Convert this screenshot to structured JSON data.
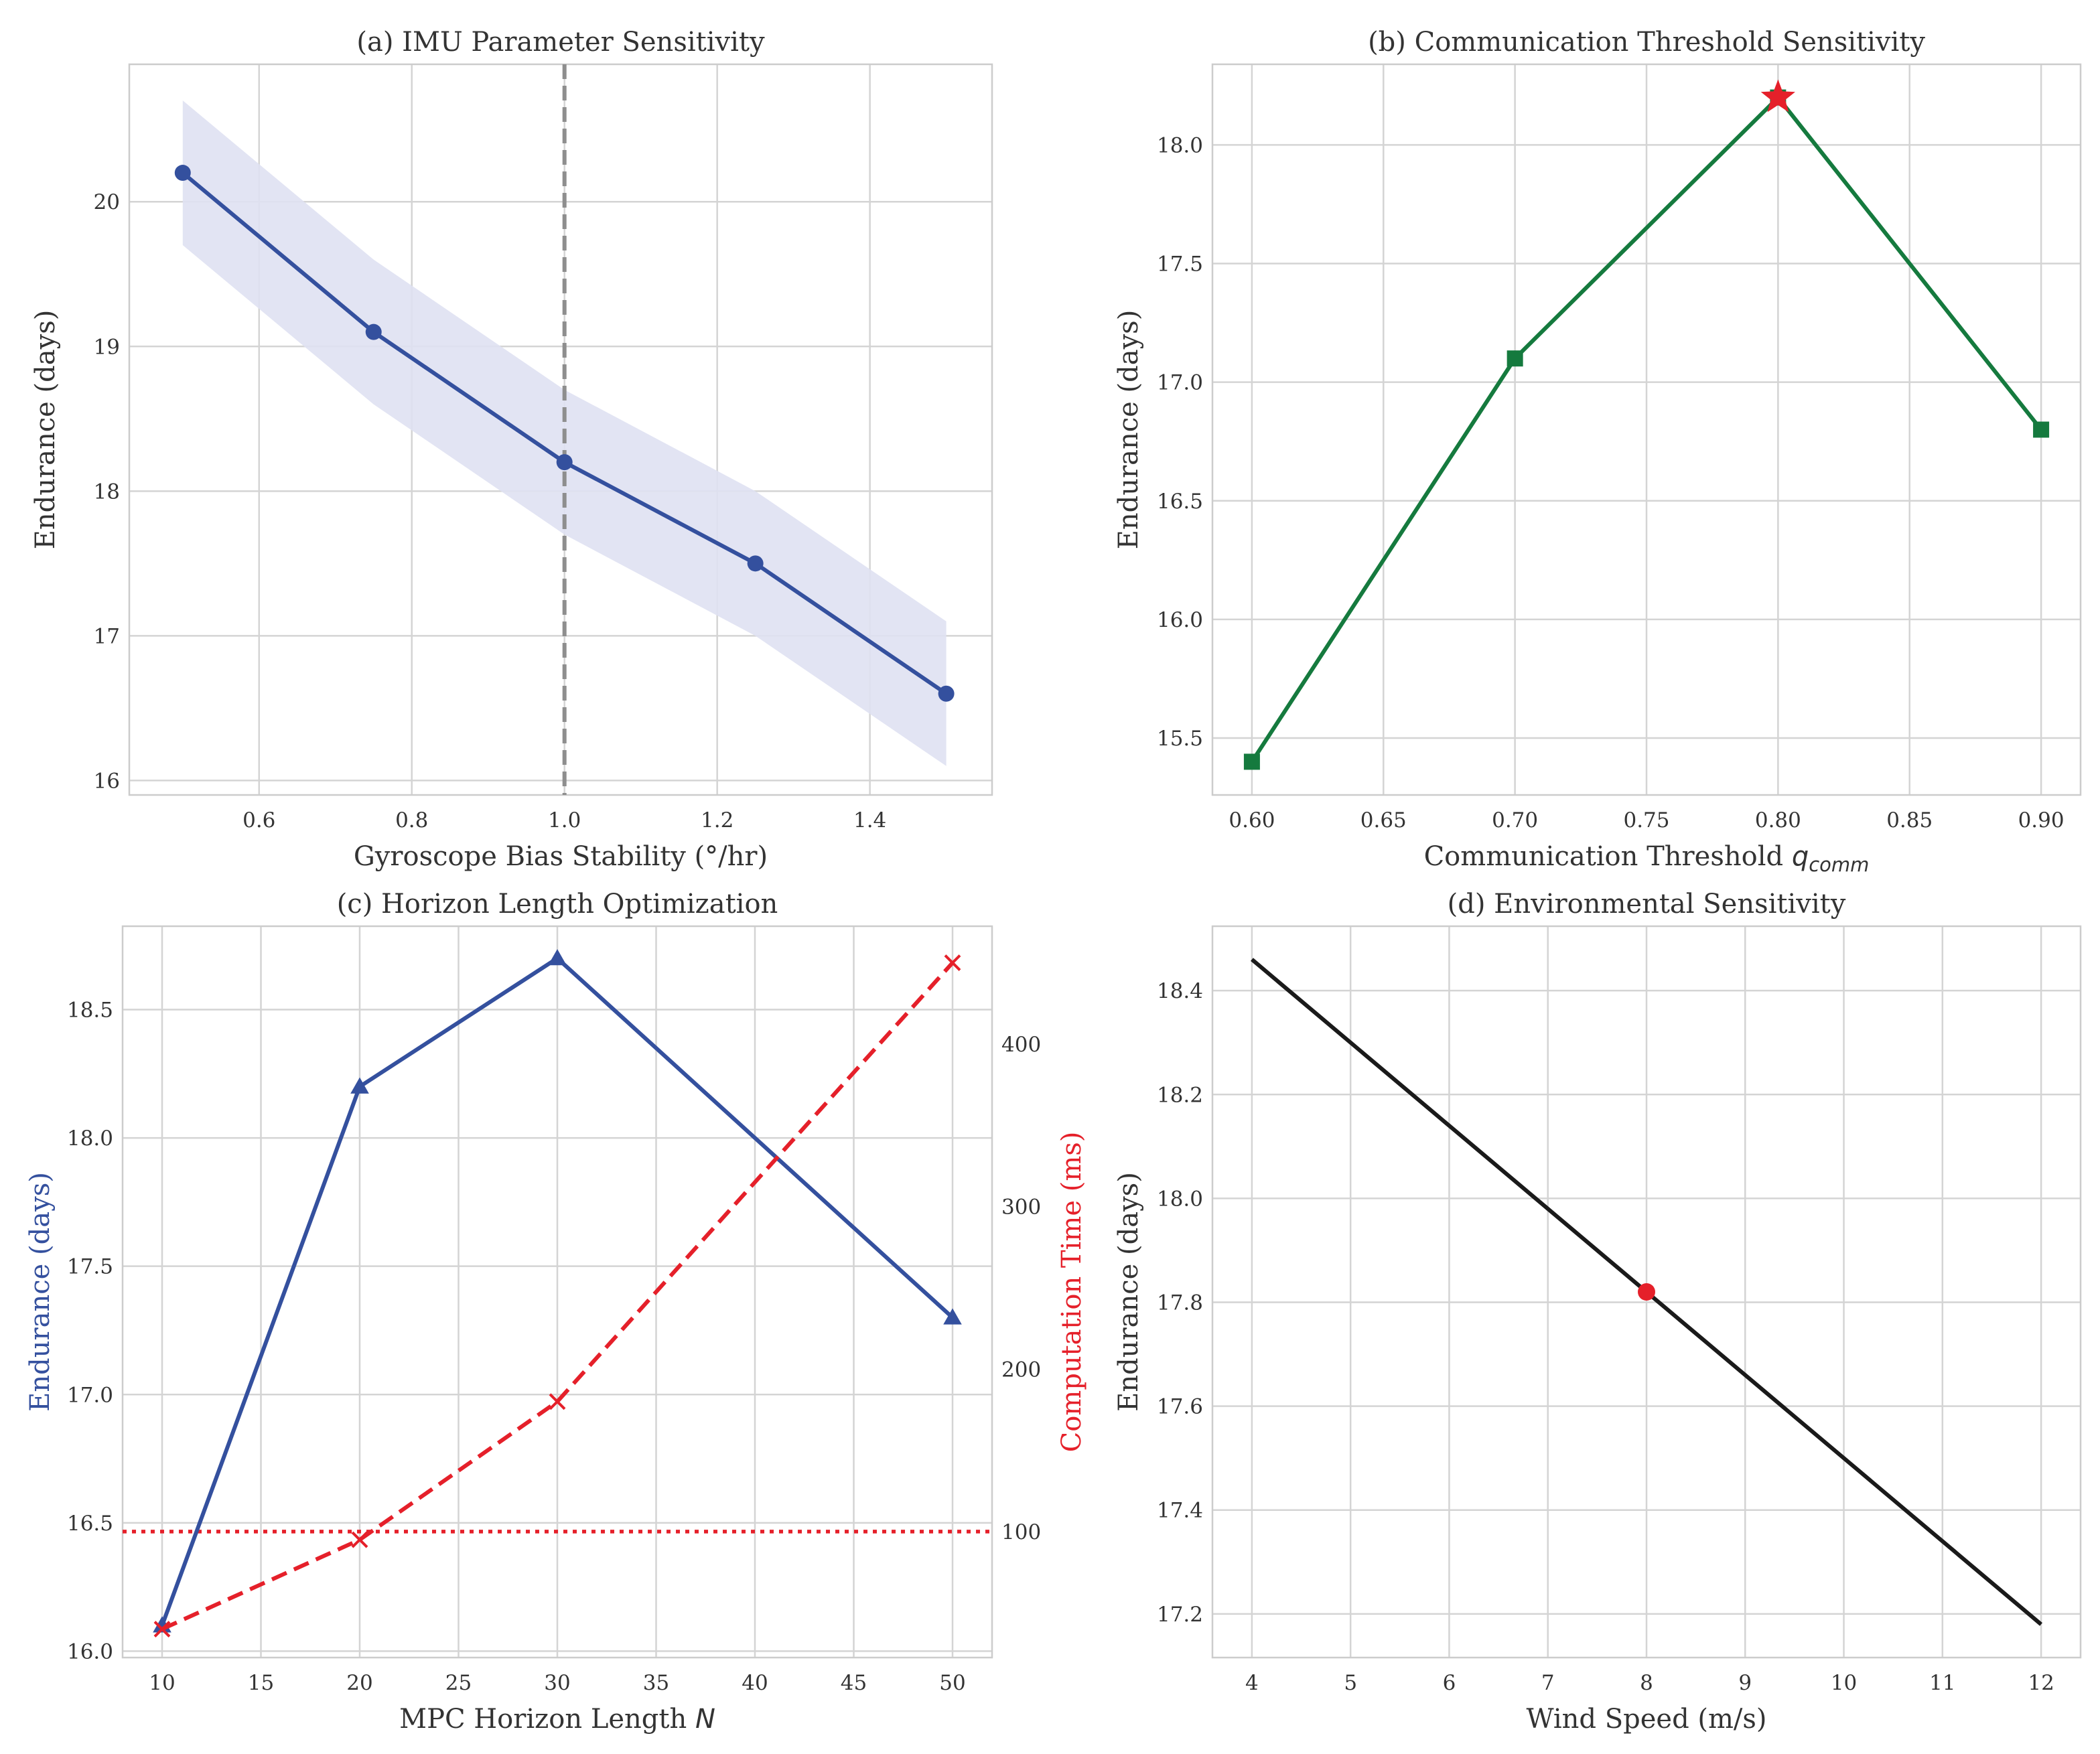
{
  "figure": {
    "background": "#ffffff",
    "grid_color": "#d4d4d4",
    "spine_color": "#cccccc"
  },
  "chart_data": [
    {
      "id": "a",
      "type": "line",
      "title": "(a) IMU Parameter Sensitivity",
      "xlabel": "Gyroscope Bias Stability (°/hr)",
      "ylabel": "Endurance (days)",
      "xlim": [
        0.43,
        1.56
      ],
      "ylim": [
        15.9,
        20.95
      ],
      "xticks": [
        0.6,
        0.8,
        1.0,
        1.2,
        1.4
      ],
      "xtick_labels": [
        "0.6",
        "0.8",
        "1.0",
        "1.2",
        "1.4"
      ],
      "yticks": [
        16,
        17,
        18,
        19,
        20
      ],
      "ytick_labels": [
        "16",
        "17",
        "18",
        "19",
        "20"
      ],
      "grid": true,
      "series": [
        {
          "x": [
            0.5,
            0.75,
            1.0,
            1.25,
            1.5
          ],
          "y": [
            20.2,
            19.1,
            18.2,
            17.5,
            16.6
          ],
          "color": "#34509e",
          "marker": "circle",
          "band_lower": [
            19.7,
            18.6,
            17.7,
            17.0,
            16.1
          ],
          "band_upper": [
            20.7,
            19.6,
            18.7,
            18.0,
            17.1
          ],
          "band_color": "#dfe1f2"
        }
      ],
      "vlines": [
        {
          "x": 1.0,
          "color": "#8e8e8e",
          "style": "dashed"
        }
      ]
    },
    {
      "id": "b",
      "type": "line",
      "title": "(b) Communication Threshold Sensitivity",
      "xlabel": "Communication Threshold ",
      "xlabel_math_base": "q",
      "xlabel_math_sub": "comm",
      "ylabel": "Endurance (days)",
      "xlim": [
        0.585,
        0.915
      ],
      "ylim": [
        15.26,
        18.34
      ],
      "xticks": [
        0.6,
        0.65,
        0.7,
        0.75,
        0.8,
        0.85,
        0.9
      ],
      "xtick_labels": [
        "0.60",
        "0.65",
        "0.70",
        "0.75",
        "0.80",
        "0.85",
        "0.90"
      ],
      "yticks": [
        15.5,
        16.0,
        16.5,
        17.0,
        17.5,
        18.0
      ],
      "ytick_labels": [
        "15.5",
        "16.0",
        "16.5",
        "17.0",
        "17.5",
        "18.0"
      ],
      "grid": true,
      "series": [
        {
          "x": [
            0.6,
            0.7,
            0.8,
            0.9
          ],
          "y": [
            15.4,
            17.1,
            18.2,
            16.8
          ],
          "color": "#157a3e",
          "marker": "square"
        }
      ],
      "highlight": {
        "x": 0.8,
        "y": 18.2,
        "marker": "star",
        "color": "#e5202a"
      }
    },
    {
      "id": "c",
      "type": "line",
      "title": "(c) Horizon Length Optimization",
      "xlabel": "MPC Horizon Length ",
      "xlabel_math_base": "N",
      "ylabel": "Endurance (days)",
      "ylabel_color": "#34509e",
      "y2label": "Computation Time (ms)",
      "y2label_color": "#e5202a",
      "xlim": [
        8.0,
        52.0
      ],
      "ylim": [
        15.975,
        18.825
      ],
      "y2lim": [
        22.5,
        472.5
      ],
      "xticks": [
        10,
        15,
        20,
        25,
        30,
        35,
        40,
        45,
        50
      ],
      "xtick_labels": [
        "10",
        "15",
        "20",
        "25",
        "30",
        "35",
        "40",
        "45",
        "50"
      ],
      "yticks": [
        16.0,
        16.5,
        17.0,
        17.5,
        18.0,
        18.5
      ],
      "ytick_labels": [
        "16.0",
        "16.5",
        "17.0",
        "17.5",
        "18.0",
        "18.5"
      ],
      "y2ticks": [
        100,
        200,
        300,
        400
      ],
      "y2tick_labels": [
        "100",
        "200",
        "300",
        "400"
      ],
      "grid": true,
      "series": [
        {
          "axis": "left",
          "x": [
            10,
            20,
            30,
            50
          ],
          "y": [
            16.1,
            18.2,
            18.7,
            17.3
          ],
          "color": "#34509e",
          "marker": "triangle"
        },
        {
          "axis": "right",
          "x": [
            10,
            20,
            30,
            50
          ],
          "y": [
            40,
            95,
            180,
            450
          ],
          "color": "#e5202a",
          "marker": "x",
          "style": "dashed"
        }
      ],
      "hlines": [
        {
          "axis": "right",
          "y": 100,
          "color": "#e5202a",
          "style": "dotted"
        }
      ]
    },
    {
      "id": "d",
      "type": "line",
      "title": "(d) Environmental Sensitivity",
      "xlabel": "Wind Speed (m/s)",
      "ylabel": "Endurance (days)",
      "xlim": [
        3.6,
        12.4
      ],
      "ylim": [
        17.116,
        18.524
      ],
      "xticks": [
        4,
        5,
        6,
        7,
        8,
        9,
        10,
        11,
        12
      ],
      "xtick_labels": [
        "4",
        "5",
        "6",
        "7",
        "8",
        "9",
        "10",
        "11",
        "12"
      ],
      "yticks": [
        17.2,
        17.4,
        17.6,
        17.8,
        18.0,
        18.2,
        18.4
      ],
      "ytick_labels": [
        "17.2",
        "17.4",
        "17.6",
        "17.8",
        "18.0",
        "18.2",
        "18.4"
      ],
      "grid": true,
      "series": [
        {
          "x": [
            4,
            12
          ],
          "y": [
            18.46,
            17.18
          ],
          "color": "#1a1a1a",
          "marker": "none"
        }
      ],
      "highlight": {
        "x": 8,
        "y": 17.82,
        "marker": "circle",
        "color": "#e5202a"
      }
    }
  ]
}
